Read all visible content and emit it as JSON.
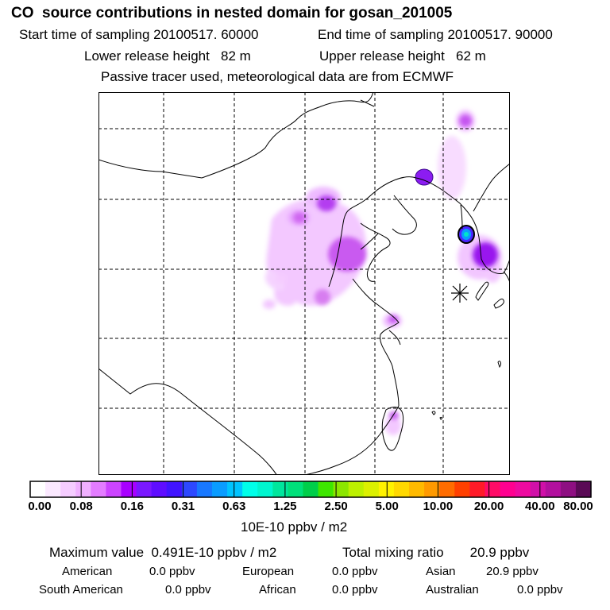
{
  "header": {
    "title": "CO  source contributions in nested domain for gosan_201005",
    "start_time": "Start time of sampling 20100517. 60000",
    "end_time": "End time of sampling 20100517. 90000",
    "lower_height": "Lower release height   82 m",
    "upper_height": "Upper release height   62 m",
    "note": "Passive tracer used, meteorological data are from ECMWF"
  },
  "chart_data": {
    "type": "heatmap",
    "title": "CO  source contributions in nested domain for gosan_201005",
    "colorbar": {
      "unit": "10E-10 ppbv / m2",
      "ticks": [
        "0.00",
        "0.08",
        "0.16",
        "0.31",
        "0.63",
        "1.25",
        "2.50",
        "5.00",
        "10.00",
        "20.00",
        "40.00",
        "80.00"
      ],
      "colors": [
        "#ffffff",
        "#fbe9ff",
        "#f5ccff",
        "#f0b0ff",
        "#e37cff",
        "#cc44ff",
        "#a800ff",
        "#7a18ff",
        "#5f0dff",
        "#4114ff",
        "#2d48ff",
        "#1878ff",
        "#0a9cff",
        "#00c4ff",
        "#00ffe9",
        "#00f5cf",
        "#00e69d",
        "#00e07a",
        "#00ce4a",
        "#3ee600",
        "#8ce600",
        "#bdf000",
        "#dcf000",
        "#fff200",
        "#ffd800",
        "#ffba00",
        "#ff9a00",
        "#ff6c00",
        "#ff4000",
        "#ff1a28",
        "#ff0b67",
        "#ff0090",
        "#ee0aa0",
        "#d010a8",
        "#b2109e",
        "#8e0f82",
        "#5a0a56"
      ]
    },
    "receptor": "Gosan"
  },
  "stats": {
    "max_value": "Maximum value  0.491E-10 ppbv / m2",
    "total_mixing": "Total mixing ratio       20.9 ppbv",
    "regions": [
      {
        "name": "American",
        "value": "0.0 ppbv"
      },
      {
        "name": "European",
        "value": "0.0 ppbv"
      },
      {
        "name": "Asian",
        "value": "20.9 ppbv"
      },
      {
        "name": "South American",
        "value": "0.0 ppbv"
      },
      {
        "name": "African",
        "value": "0.0 ppbv"
      },
      {
        "name": "Australian",
        "value": "0.0 ppbv"
      }
    ]
  }
}
